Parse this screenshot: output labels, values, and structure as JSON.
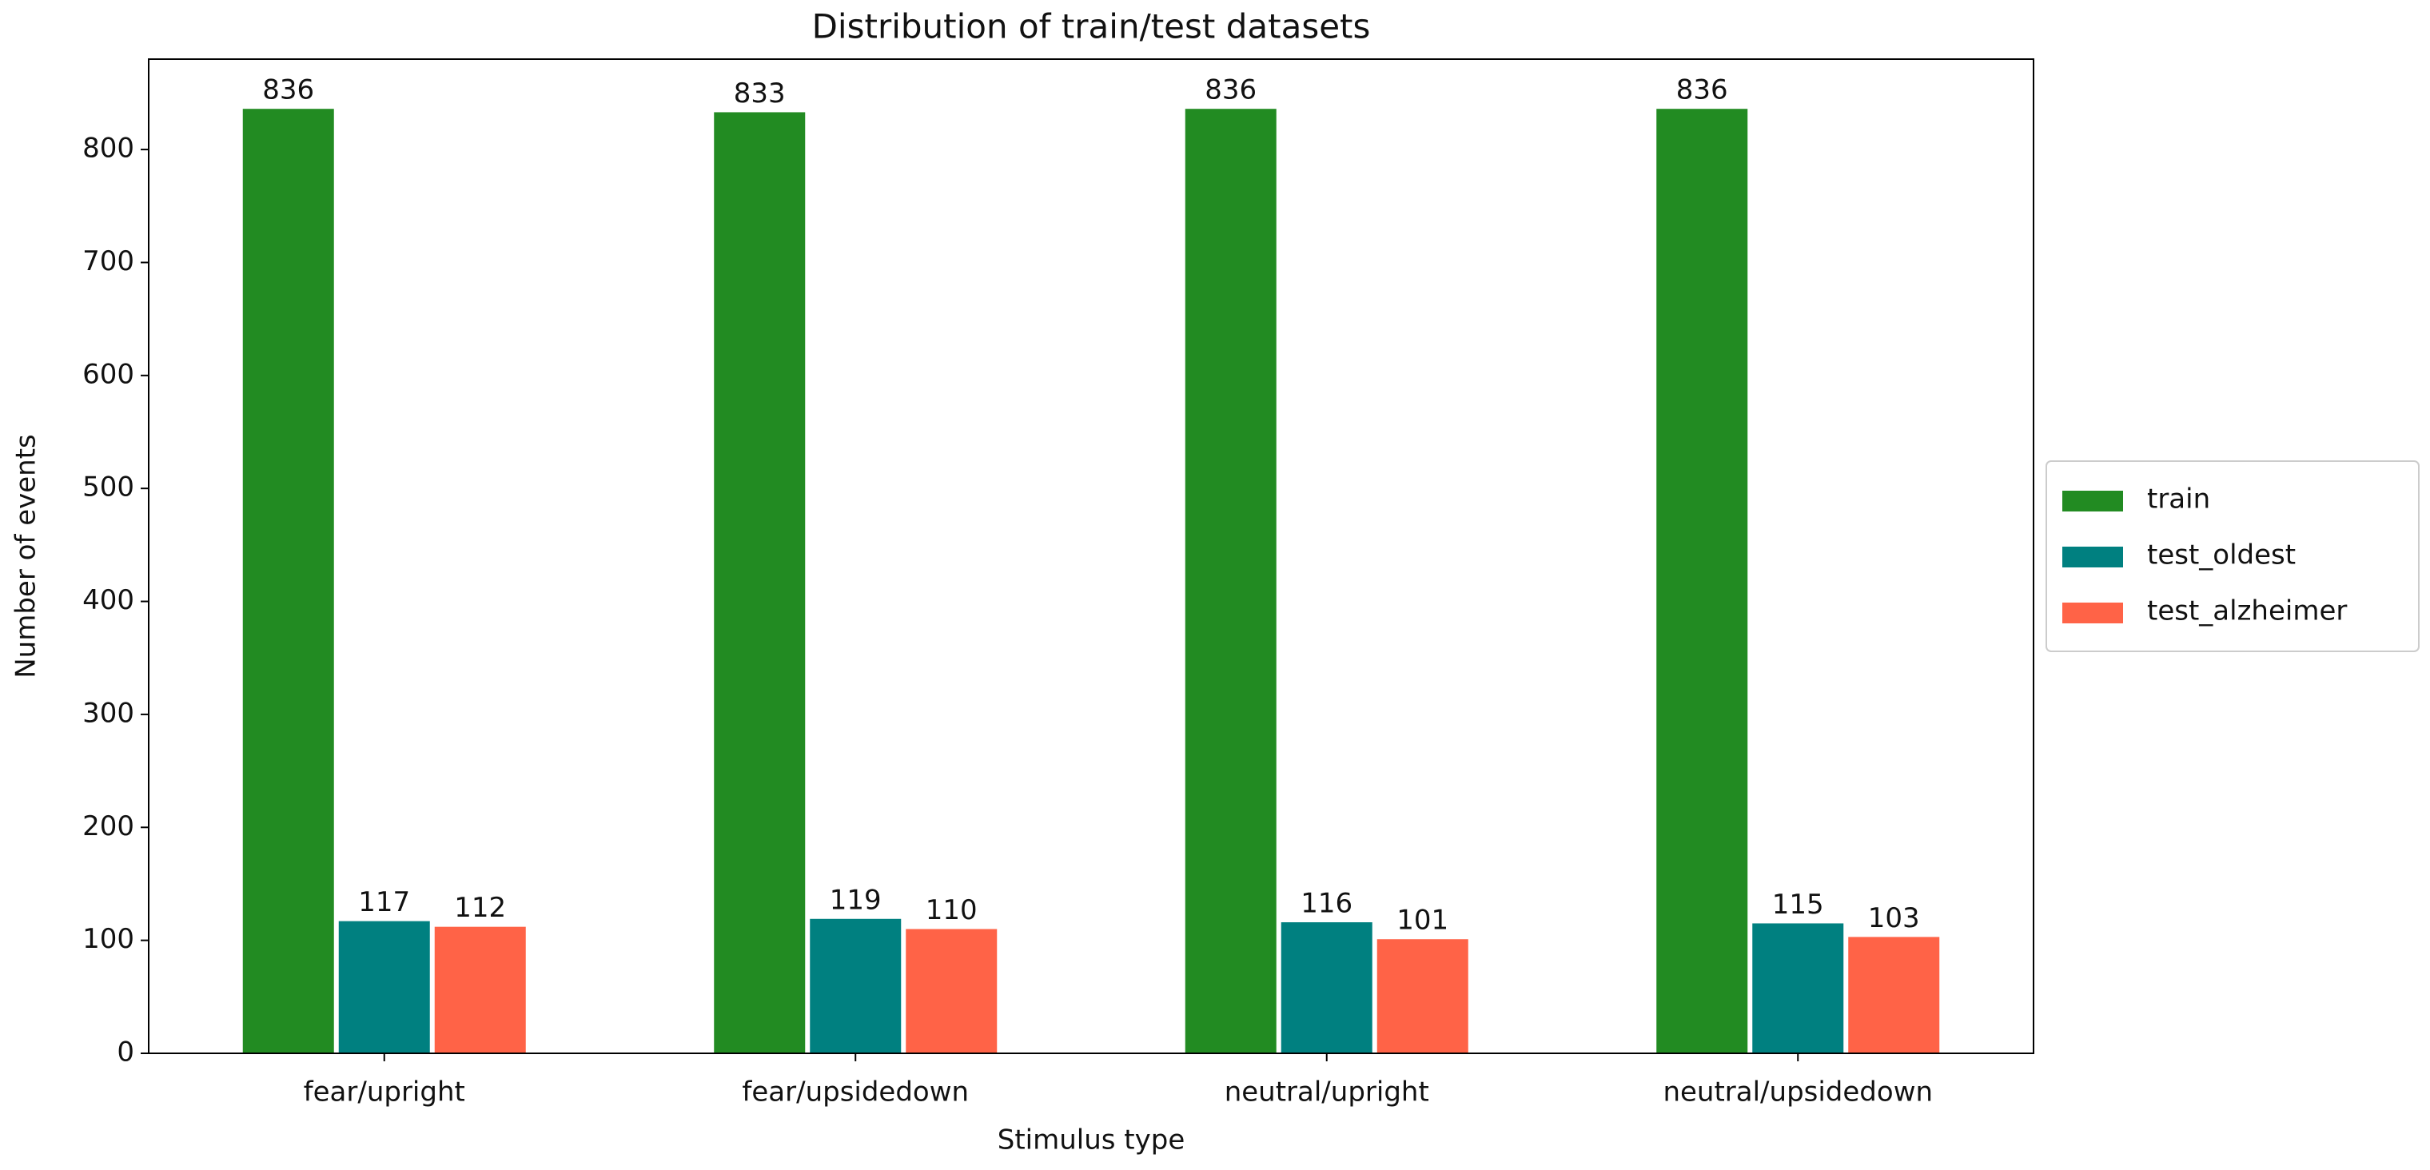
{
  "chart_data": {
    "type": "bar",
    "title": "Distribution of train/test datasets",
    "x_label": "Stimulus type",
    "y_label": "Number of events",
    "categories": [
      "fear/upright",
      "fear/upsidedown",
      "neutral/upright",
      "neutral/upsidedown"
    ],
    "series": [
      {
        "name": "train",
        "color": "#228b22",
        "values": [
          836,
          833,
          836,
          836
        ]
      },
      {
        "name": "test_oldest",
        "color": "#008080",
        "values": [
          117,
          119,
          116,
          115
        ]
      },
      {
        "name": "test_alzheimer",
        "color": "#ff6347",
        "values": [
          112,
          110,
          101,
          103
        ]
      }
    ],
    "ylim": [
      0,
      880
    ],
    "yticks": [
      0,
      100,
      200,
      300,
      400,
      500,
      600,
      700,
      800
    ],
    "grid": false,
    "legend": "right",
    "data_labels": true
  }
}
